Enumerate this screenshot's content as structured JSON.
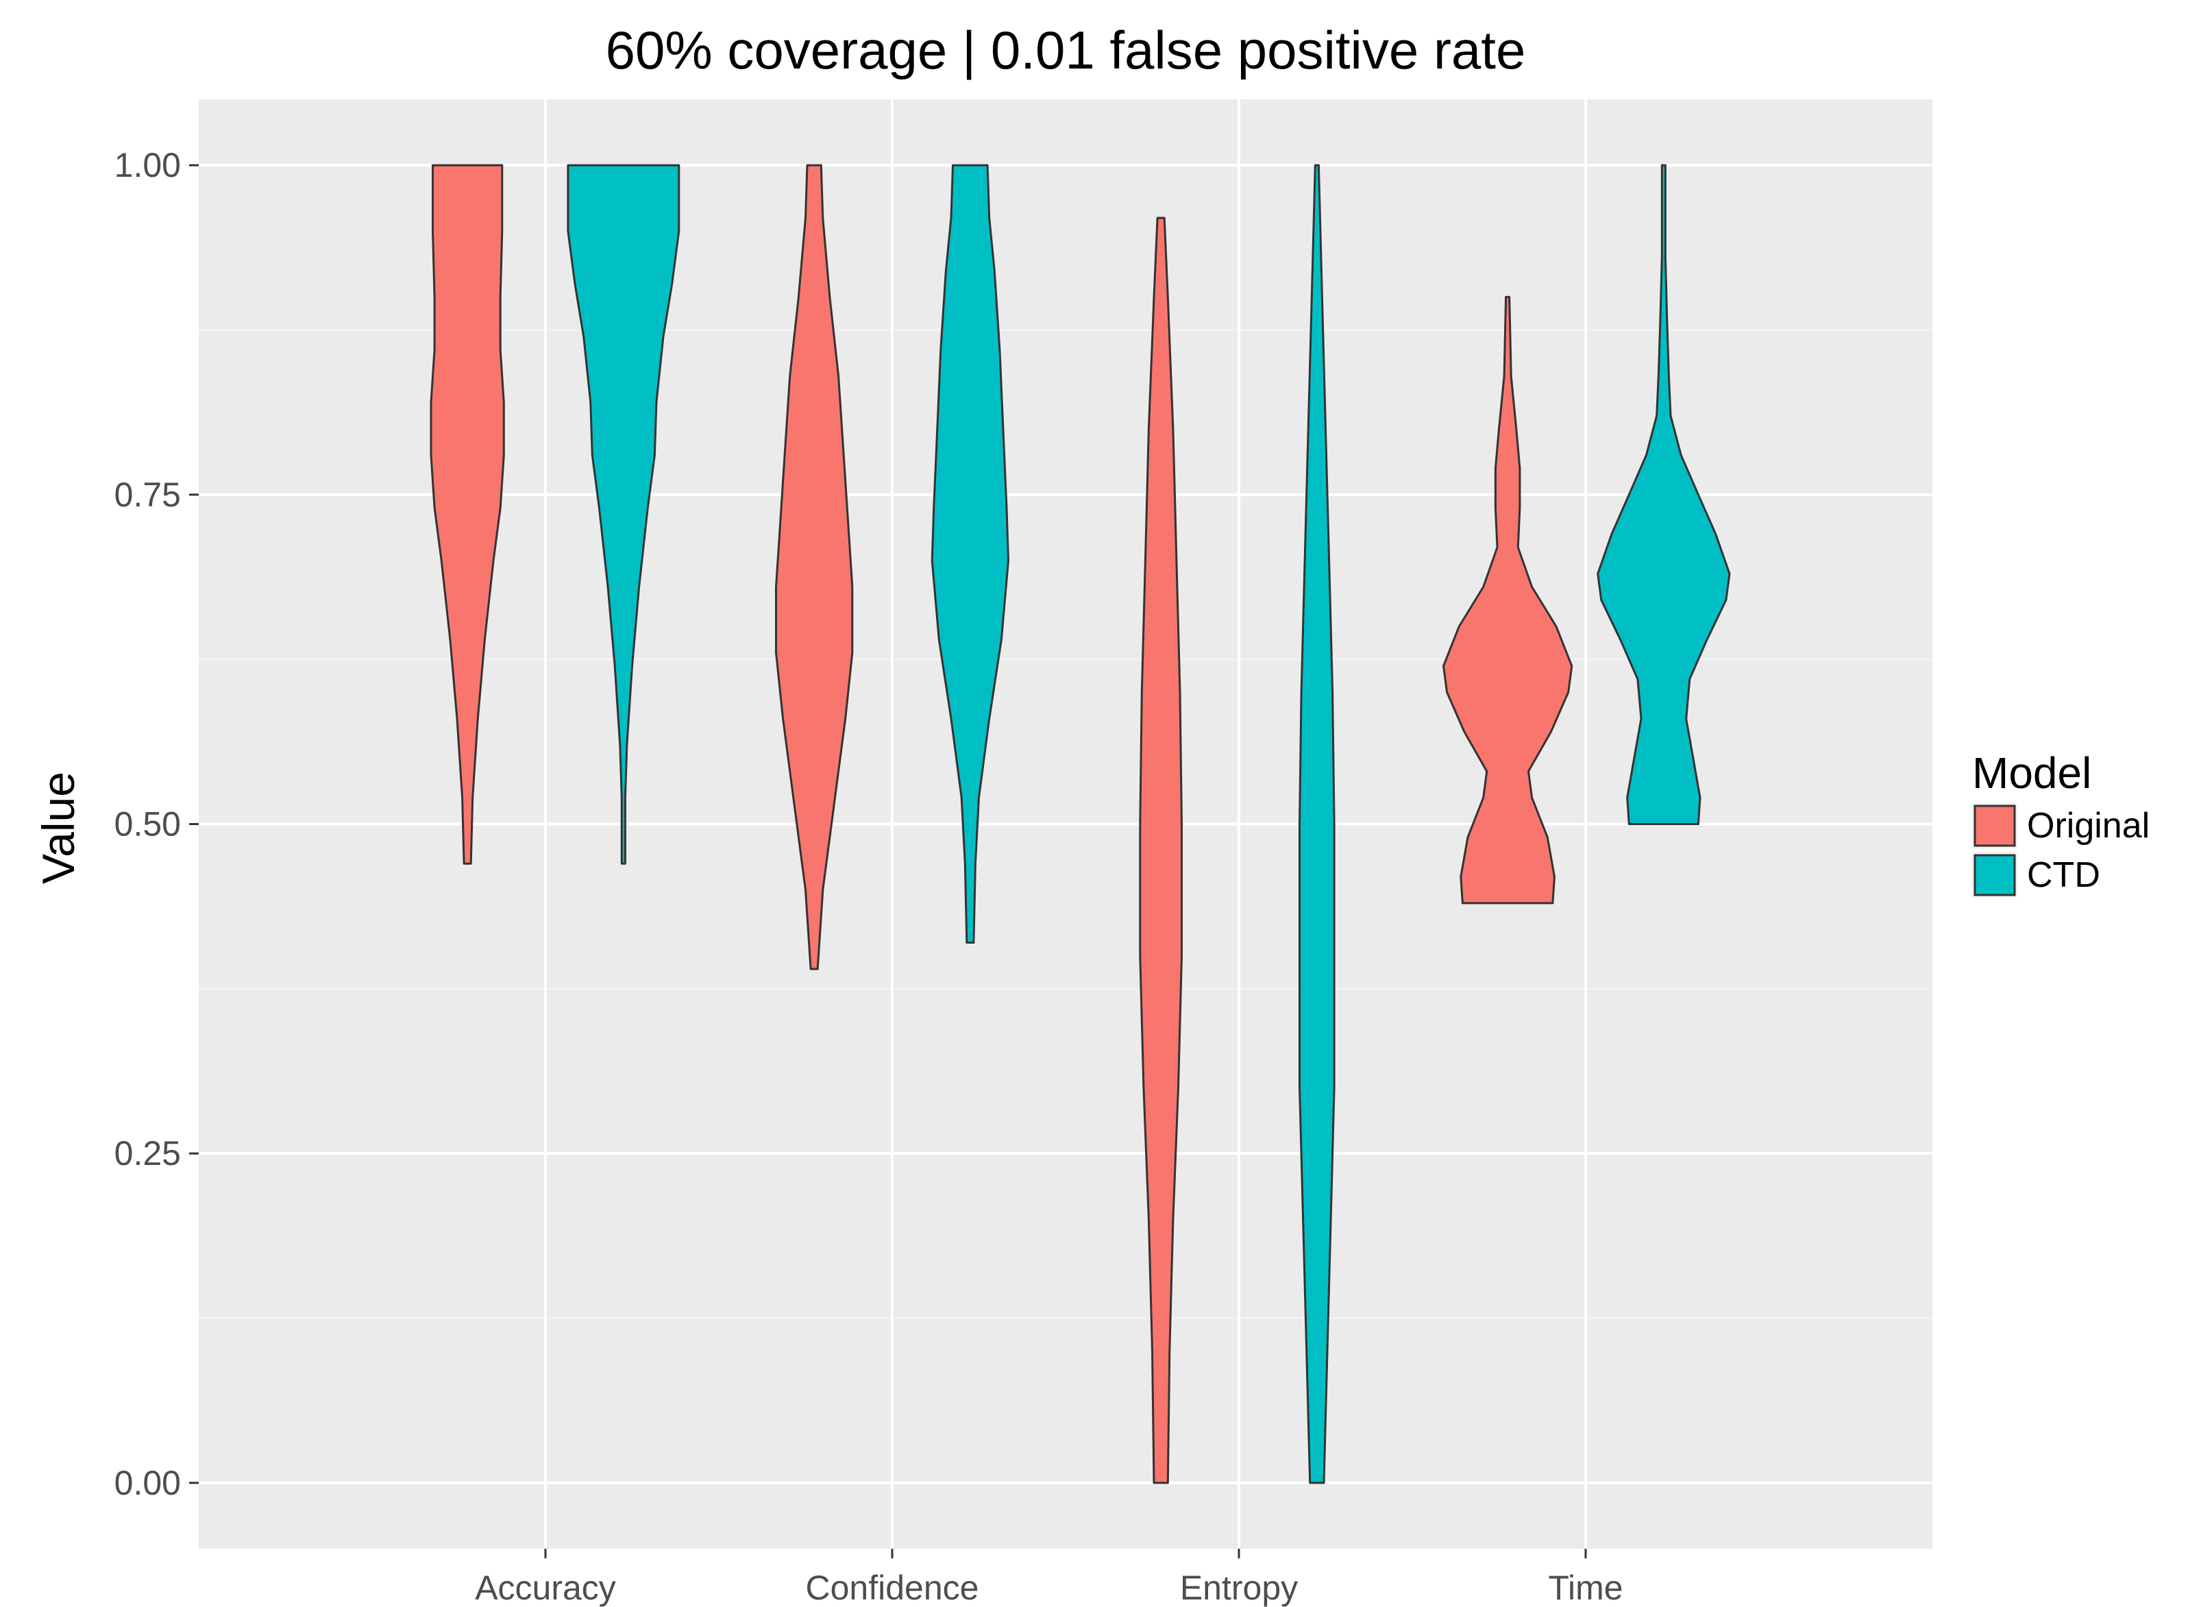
{
  "chart_data": {
    "type": "violin",
    "title": "60% coverage | 0.01 false positive rate",
    "xlabel": "",
    "ylabel": "Value",
    "ylim": [
      -0.05,
      1.05
    ],
    "yticks": [
      "0.00",
      "0.25",
      "0.50",
      "0.75",
      "1.00"
    ],
    "categories": [
      "Accuracy",
      "Confidence",
      "Entropy",
      "Time"
    ],
    "grid": true,
    "legend": {
      "title": "Model",
      "position": "right",
      "entries": [
        "Original",
        "CTD"
      ]
    },
    "series": [
      {
        "name": "Original",
        "color": "#F8766D",
        "violins": [
          {
            "category": "Accuracy",
            "min": 0.47,
            "max": 1.0,
            "profile": [
              [
                0.47,
                0.02
              ],
              [
                0.52,
                0.03
              ],
              [
                0.58,
                0.06
              ],
              [
                0.64,
                0.1
              ],
              [
                0.7,
                0.15
              ],
              [
                0.74,
                0.19
              ],
              [
                0.78,
                0.21
              ],
              [
                0.82,
                0.21
              ],
              [
                0.86,
                0.19
              ],
              [
                0.9,
                0.19
              ],
              [
                0.95,
                0.2
              ],
              [
                0.98,
                0.2
              ],
              [
                1.0,
                0.2
              ]
            ]
          },
          {
            "category": "Confidence",
            "min": 0.39,
            "max": 1.0,
            "profile": [
              [
                0.39,
                0.02
              ],
              [
                0.45,
                0.05
              ],
              [
                0.52,
                0.12
              ],
              [
                0.58,
                0.18
              ],
              [
                0.63,
                0.22
              ],
              [
                0.68,
                0.22
              ],
              [
                0.72,
                0.2
              ],
              [
                0.78,
                0.17
              ],
              [
                0.84,
                0.14
              ],
              [
                0.9,
                0.09
              ],
              [
                0.96,
                0.05
              ],
              [
                1.0,
                0.04
              ]
            ]
          },
          {
            "category": "Entropy",
            "min": 0.0,
            "max": 0.96,
            "profile": [
              [
                0.0,
                0.04
              ],
              [
                0.1,
                0.05
              ],
              [
                0.2,
                0.07
              ],
              [
                0.3,
                0.1
              ],
              [
                0.4,
                0.12
              ],
              [
                0.5,
                0.12
              ],
              [
                0.6,
                0.11
              ],
              [
                0.7,
                0.09
              ],
              [
                0.8,
                0.07
              ],
              [
                0.9,
                0.04
              ],
              [
                0.96,
                0.02
              ]
            ]
          },
          {
            "category": "Time",
            "min": 0.44,
            "max": 0.9,
            "profile": [
              [
                0.44,
                0.26
              ],
              [
                0.46,
                0.27
              ],
              [
                0.49,
                0.23
              ],
              [
                0.52,
                0.14
              ],
              [
                0.54,
                0.12
              ],
              [
                0.57,
                0.25
              ],
              [
                0.6,
                0.35
              ],
              [
                0.62,
                0.37
              ],
              [
                0.65,
                0.28
              ],
              [
                0.68,
                0.14
              ],
              [
                0.71,
                0.06
              ],
              [
                0.74,
                0.07
              ],
              [
                0.77,
                0.07
              ],
              [
                0.8,
                0.05
              ],
              [
                0.84,
                0.02
              ],
              [
                0.9,
                0.01
              ]
            ]
          }
        ]
      },
      {
        "name": "CTD",
        "color": "#00BFC4",
        "violins": [
          {
            "category": "Accuracy",
            "min": 0.47,
            "max": 1.0,
            "profile": [
              [
                0.47,
                0.01
              ],
              [
                0.52,
                0.01
              ],
              [
                0.56,
                0.02
              ],
              [
                0.62,
                0.05
              ],
              [
                0.68,
                0.09
              ],
              [
                0.74,
                0.14
              ],
              [
                0.78,
                0.18
              ],
              [
                0.82,
                0.19
              ],
              [
                0.87,
                0.23
              ],
              [
                0.91,
                0.28
              ],
              [
                0.95,
                0.32
              ],
              [
                0.98,
                0.32
              ],
              [
                1.0,
                0.32
              ]
            ]
          },
          {
            "category": "Confidence",
            "min": 0.41,
            "max": 1.0,
            "profile": [
              [
                0.41,
                0.02
              ],
              [
                0.47,
                0.03
              ],
              [
                0.52,
                0.05
              ],
              [
                0.58,
                0.11
              ],
              [
                0.64,
                0.18
              ],
              [
                0.7,
                0.22
              ],
              [
                0.74,
                0.21
              ],
              [
                0.8,
                0.19
              ],
              [
                0.86,
                0.17
              ],
              [
                0.92,
                0.14
              ],
              [
                0.96,
                0.11
              ],
              [
                1.0,
                0.1
              ]
            ]
          },
          {
            "category": "Entropy",
            "min": 0.0,
            "max": 1.0,
            "profile": [
              [
                0.0,
                0.04
              ],
              [
                0.1,
                0.06
              ],
              [
                0.2,
                0.08
              ],
              [
                0.3,
                0.1
              ],
              [
                0.4,
                0.1
              ],
              [
                0.5,
                0.1
              ],
              [
                0.6,
                0.09
              ],
              [
                0.7,
                0.07
              ],
              [
                0.8,
                0.05
              ],
              [
                0.9,
                0.03
              ],
              [
                1.0,
                0.01
              ]
            ]
          },
          {
            "category": "Time",
            "min": 0.5,
            "max": 1.0,
            "profile": [
              [
                0.5,
                0.2
              ],
              [
                0.52,
                0.21
              ],
              [
                0.55,
                0.17
              ],
              [
                0.58,
                0.13
              ],
              [
                0.61,
                0.15
              ],
              [
                0.64,
                0.25
              ],
              [
                0.67,
                0.36
              ],
              [
                0.69,
                0.38
              ],
              [
                0.72,
                0.3
              ],
              [
                0.75,
                0.2
              ],
              [
                0.78,
                0.1
              ],
              [
                0.81,
                0.04
              ],
              [
                0.84,
                0.03
              ],
              [
                0.88,
                0.02
              ],
              [
                0.93,
                0.01
              ],
              [
                0.97,
                0.01
              ],
              [
                1.0,
                0.01
              ]
            ]
          }
        ]
      }
    ]
  }
}
